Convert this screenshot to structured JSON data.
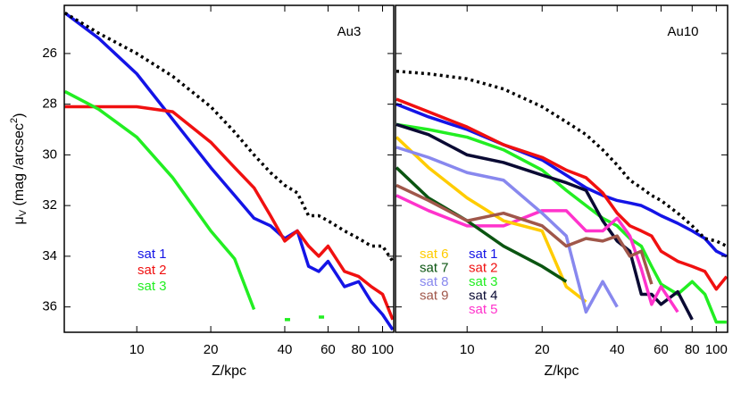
{
  "chart_data": [
    {
      "type": "line",
      "annotation": "Au3",
      "xlabel": "Z/kpc",
      "ylabel": [
        "μ",
        "V",
        " (mag /arcsec",
        "2",
        ")"
      ],
      "xscale": "log",
      "xlim": [
        5.07,
        111
      ],
      "xticks": [
        10,
        20,
        40,
        60,
        80,
        100
      ],
      "ylim": [
        37,
        24.1
      ],
      "yticks": [
        26,
        28,
        30,
        32,
        34,
        36
      ],
      "show_ytick_labels": true,
      "x": [
        5.1,
        7,
        10,
        14,
        20,
        25,
        30,
        35,
        40,
        45,
        50,
        55,
        60,
        70,
        80,
        90,
        100,
        110
      ],
      "series": [
        {
          "name": "sat 1",
          "color": "#1414e6",
          "values": [
            24.4,
            25.4,
            26.8,
            28.6,
            30.5,
            31.6,
            32.5,
            32.8,
            33.3,
            33.0,
            34.4,
            34.6,
            34.2,
            35.2,
            35.0,
            35.8,
            36.3,
            36.9
          ]
        },
        {
          "name": "sat 2",
          "color": "#f01010",
          "values": [
            28.1,
            28.1,
            28.1,
            28.3,
            29.5,
            30.5,
            31.3,
            32.4,
            33.4,
            33.0,
            33.6,
            34.0,
            33.6,
            34.6,
            34.8,
            35.2,
            35.5,
            36.5
          ]
        },
        {
          "name": "sat 3",
          "color": "#22ee22",
          "values": [
            27.5,
            28.2,
            29.3,
            30.9,
            33.0,
            34.1,
            36.1,
            null,
            36.5,
            null,
            null,
            36.4,
            null,
            null,
            null,
            null,
            null,
            null
          ]
        },
        {
          "color": "#000000",
          "linestyle": "dotted",
          "values": [
            24.4,
            25.2,
            26.0,
            26.9,
            28.1,
            29.1,
            30.0,
            30.7,
            31.2,
            31.5,
            32.4,
            32.4,
            32.6,
            33.0,
            33.3,
            33.6,
            33.6,
            34.2
          ]
        }
      ]
    },
    {
      "type": "line",
      "annotation": "Au10",
      "xlabel": "Z/kpc",
      "xscale": "log",
      "xlim": [
        5.16,
        111
      ],
      "xticks": [
        10,
        20,
        40,
        60,
        80,
        100
      ],
      "ylim": [
        37,
        24.1
      ],
      "yticks": [
        26,
        28,
        30,
        32,
        34,
        36
      ],
      "show_ytick_labels": false,
      "x": [
        5.2,
        7,
        10,
        14,
        20,
        25,
        30,
        35,
        40,
        45,
        50,
        55,
        60,
        70,
        80,
        90,
        100,
        110
      ],
      "series": [
        {
          "name": "sat 1",
          "color": "#1414e6",
          "values": [
            28.0,
            28.5,
            29.0,
            29.6,
            30.2,
            30.8,
            31.3,
            31.6,
            31.8,
            31.9,
            32.0,
            32.2,
            32.4,
            32.7,
            33.0,
            33.3,
            33.8,
            34.0
          ]
        },
        {
          "name": "sat 2",
          "color": "#f01010",
          "values": [
            27.8,
            28.3,
            28.9,
            29.6,
            30.1,
            30.6,
            30.9,
            31.5,
            32.3,
            32.8,
            33.0,
            33.2,
            33.8,
            34.2,
            34.4,
            34.6,
            35.3,
            34.8
          ]
        },
        {
          "name": "sat 3",
          "color": "#22ee22",
          "values": [
            28.8,
            29.0,
            29.3,
            29.8,
            30.6,
            31.4,
            32.0,
            32.5,
            32.8,
            33.3,
            33.6,
            34.4,
            35.1,
            35.5,
            35.0,
            35.5,
            36.6,
            36.6
          ]
        },
        {
          "name": "sat 4",
          "color": "#0a0a33",
          "values": [
            28.8,
            29.2,
            30.0,
            30.3,
            30.8,
            31.1,
            31.4,
            32.6,
            33.4,
            33.8,
            35.5,
            35.5,
            35.9,
            35.4,
            36.5,
            null,
            null,
            null
          ]
        },
        {
          "name": "sat 5",
          "color": "#ff33cc",
          "values": [
            31.6,
            32.2,
            32.8,
            32.8,
            32.2,
            32.2,
            33.0,
            33.0,
            32.5,
            33.2,
            34.5,
            35.9,
            35.2,
            36.2,
            null,
            null,
            null,
            null
          ]
        },
        {
          "name": "sat 6",
          "color": "#ffcc00",
          "values": [
            29.3,
            30.5,
            31.7,
            32.6,
            33.0,
            35.2,
            35.8,
            null,
            null,
            null,
            null,
            null,
            null,
            null,
            null,
            null,
            null,
            null
          ]
        },
        {
          "name": "sat 7",
          "color": "#0b5511",
          "values": [
            30.5,
            31.7,
            32.6,
            33.6,
            34.4,
            35.0,
            null,
            null,
            null,
            null,
            null,
            null,
            null,
            null,
            null,
            null,
            null,
            null
          ]
        },
        {
          "name": "sat 8",
          "color": "#8888ee",
          "values": [
            29.7,
            30.1,
            30.7,
            31.0,
            32.3,
            33.2,
            36.2,
            35.0,
            36.0,
            null,
            null,
            null,
            null,
            null,
            null,
            null,
            null,
            null
          ]
        },
        {
          "name": "sat 9",
          "color": "#a0574a",
          "values": [
            31.2,
            31.8,
            32.6,
            32.3,
            32.8,
            33.6,
            33.3,
            33.4,
            33.2,
            34.0,
            33.8,
            35.1,
            null,
            null,
            null,
            null,
            null,
            null
          ]
        },
        {
          "color": "#000000",
          "linestyle": "dotted",
          "values": [
            26.7,
            26.8,
            27.0,
            27.4,
            28.1,
            28.7,
            29.2,
            29.8,
            30.4,
            31.0,
            31.3,
            31.6,
            31.8,
            32.3,
            32.8,
            33.3,
            33.4,
            33.6
          ]
        }
      ]
    }
  ]
}
